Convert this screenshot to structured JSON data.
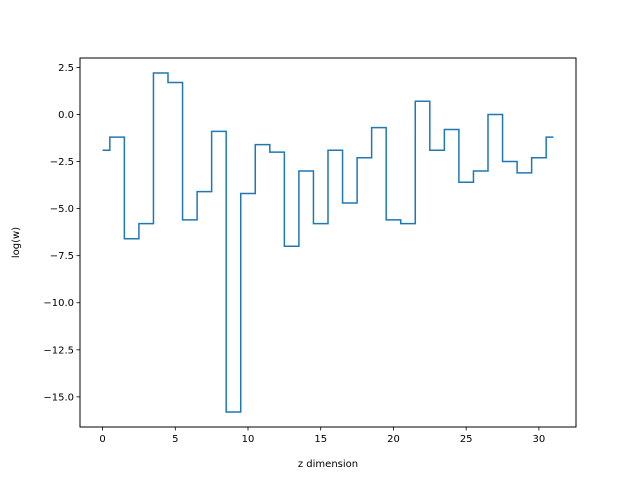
{
  "chart_data": {
    "type": "line",
    "drawstyle": "steps-mid",
    "title": "",
    "xlabel": "z dimension",
    "ylabel": "log(w)",
    "xlim": [
      -1.55,
      32.55
    ],
    "ylim": [
      -16.6,
      3.0
    ],
    "grid": false,
    "legend": "none",
    "x_ticks": [
      0,
      5,
      10,
      15,
      20,
      25,
      30
    ],
    "x_tick_labels": [
      "0",
      "5",
      "10",
      "15",
      "20",
      "25",
      "30"
    ],
    "y_ticks": [
      2.5,
      0.0,
      -2.5,
      -5.0,
      -7.5,
      -10.0,
      -12.5,
      -15.0
    ],
    "y_tick_labels": [
      "2.5",
      "0.0",
      "−2.5",
      "−5.0",
      "−7.5",
      "−10.0",
      "−12.5",
      "−15.0"
    ],
    "x": [
      0,
      1,
      2,
      3,
      4,
      5,
      6,
      7,
      8,
      9,
      10,
      11,
      12,
      13,
      14,
      15,
      16,
      17,
      18,
      19,
      20,
      21,
      22,
      23,
      24,
      25,
      26,
      27,
      28,
      29,
      30,
      31
    ],
    "series": [
      {
        "color": "#1f77b4",
        "values": [
          -1.9,
          -1.2,
          -6.6,
          -5.8,
          2.2,
          1.7,
          -5.6,
          -4.1,
          -0.9,
          -15.8,
          -4.2,
          -1.6,
          -2.0,
          -7.0,
          -3.0,
          -5.8,
          -1.9,
          -4.7,
          -2.3,
          -0.7,
          -5.6,
          -5.8,
          0.7,
          -1.9,
          -0.8,
          -3.6,
          -3.0,
          0.0,
          -2.5,
          -3.1,
          -2.3,
          -1.2
        ]
      }
    ]
  }
}
